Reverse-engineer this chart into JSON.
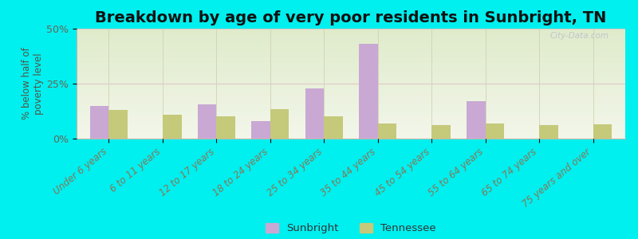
{
  "title": "Breakdown by age of very poor residents in Sunbright, TN",
  "ylabel": "% below half of\npoverty level",
  "categories": [
    "Under 6 years",
    "6 to 11 years",
    "12 to 17 years",
    "18 to 24 years",
    "25 to 34 years",
    "35 to 44 years",
    "45 to 54 years",
    "55 to 64 years",
    "65 to 74 years",
    "75 years and over"
  ],
  "sunbright_values": [
    15.0,
    0.0,
    15.5,
    8.0,
    23.0,
    43.0,
    0.0,
    17.0,
    0.0,
    0.0
  ],
  "tennessee_values": [
    13.0,
    11.0,
    10.0,
    13.5,
    10.0,
    7.0,
    6.0,
    7.0,
    6.0,
    6.5
  ],
  "sunbright_color": "#c9a8d4",
  "tennessee_color": "#c5c97a",
  "background_color": "#00efef",
  "ylim": [
    0,
    50
  ],
  "yticks": [
    0,
    25,
    50
  ],
  "ytick_labels": [
    "0%",
    "25%",
    "50%"
  ],
  "bar_width": 0.35,
  "title_fontsize": 14,
  "legend_labels": [
    "Sunbright",
    "Tennessee"
  ],
  "watermark": "City-Data.com",
  "grid_color": "#e8e0d0",
  "plot_grad_top": "#d8e8c0",
  "plot_grad_bottom": "#f5f8ee"
}
